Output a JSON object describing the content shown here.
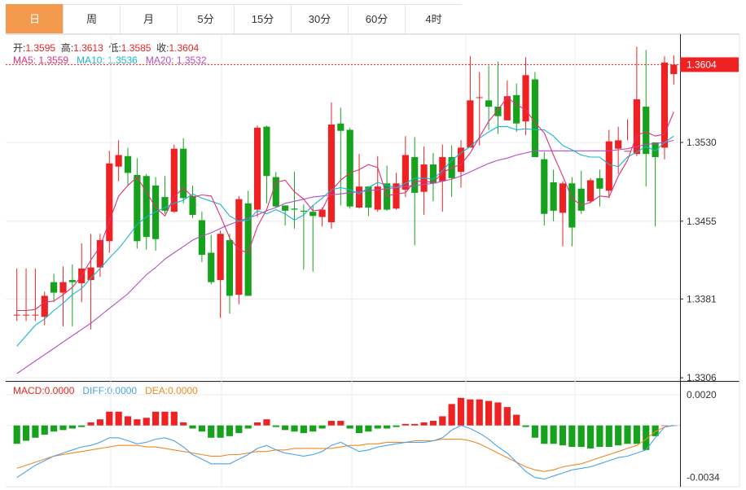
{
  "tabs": [
    {
      "label": "日",
      "active": true
    },
    {
      "label": "周",
      "active": false
    },
    {
      "label": "月",
      "active": false
    },
    {
      "label": "5分",
      "active": false
    },
    {
      "label": "15分",
      "active": false
    },
    {
      "label": "30分",
      "active": false
    },
    {
      "label": "60分",
      "active": false
    },
    {
      "label": "4时",
      "active": false
    }
  ],
  "ohlc": {
    "open_label": "开:",
    "open": "1.3595",
    "high_label": "高:",
    "high": "1.3613",
    "low_label": "低:",
    "low": "1.3585",
    "close_label": "收:",
    "close": "1.3604"
  },
  "ma": {
    "ma5_label": "MA5:",
    "ma5": "1.3559",
    "ma10_label": "MA10:",
    "ma10": "1.3536",
    "ma20_label": "MA20:",
    "ma20": "1.3532"
  },
  "macd": {
    "macd_label": "MACD:",
    "macd": "0.0000",
    "diff_label": "DIFF:",
    "diff": "0.0000",
    "dea_label": "DEA:",
    "dea": "0.0000"
  },
  "last_price_label": "1.3604",
  "colors": {
    "up": "#ee2222",
    "down": "#16a21d",
    "ma5": "#e0307a",
    "ma10": "#17b6d3",
    "ma20": "#b34ec4",
    "diff": "#4aa3e6",
    "dea": "#f08a24",
    "tab_active": "#f39a4e"
  },
  "chart_data": {
    "type": "candlestick",
    "price_axis": {
      "ticks": [
        "1.3604",
        "1.3530",
        "1.3455",
        "1.3381",
        "1.3306"
      ],
      "ylim": [
        1.3303,
        1.3633
      ]
    },
    "macd_axis": {
      "ticks": [
        "0.0020",
        "-0.0034"
      ],
      "ylim": [
        -0.004,
        0.0028
      ]
    },
    "candles": [
      [
        1.3366,
        1.3366,
        1.341,
        1.336
      ],
      [
        1.3366,
        1.3366,
        1.341,
        1.336
      ],
      [
        1.3366,
        1.3366,
        1.341,
        1.336
      ],
      [
        1.3364,
        1.3384,
        1.3388,
        1.3356
      ],
      [
        1.3397,
        1.3387,
        1.3405,
        1.3378
      ],
      [
        1.3387,
        1.3397,
        1.3412,
        1.3355
      ],
      [
        1.3399,
        1.3397,
        1.3414,
        1.3355
      ],
      [
        1.3396,
        1.341,
        1.3434,
        1.3378
      ],
      [
        1.3399,
        1.3411,
        1.3443,
        1.3352
      ],
      [
        1.3411,
        1.3437,
        1.3443,
        1.3402
      ],
      [
        1.3436,
        1.351,
        1.3522,
        1.3425
      ],
      [
        1.3507,
        1.3518,
        1.3532,
        1.3493
      ],
      [
        1.3517,
        1.3501,
        1.3525,
        1.3489
      ],
      [
        1.3499,
        1.3436,
        1.3515,
        1.3429
      ],
      [
        1.3498,
        1.344,
        1.35,
        1.3428
      ],
      [
        1.3489,
        1.3438,
        1.3497,
        1.3427
      ],
      [
        1.3478,
        1.3465,
        1.3498,
        1.3462
      ],
      [
        1.3464,
        1.3524,
        1.3528,
        1.3463
      ],
      [
        1.3524,
        1.3477,
        1.3534,
        1.3472
      ],
      [
        1.3479,
        1.3461,
        1.3489,
        1.3458
      ],
      [
        1.3456,
        1.3423,
        1.3464,
        1.3416
      ],
      [
        1.3425,
        1.3397,
        1.3442,
        1.3395
      ],
      [
        1.3399,
        1.3443,
        1.3446,
        1.3363
      ],
      [
        1.3437,
        1.3384,
        1.3443,
        1.3367
      ],
      [
        1.3385,
        1.3476,
        1.3479,
        1.3376
      ],
      [
        1.3472,
        1.3384,
        1.3484,
        1.3384
      ],
      [
        1.3466,
        1.3544,
        1.3546,
        1.3459
      ],
      [
        1.3545,
        1.3498,
        1.3546,
        1.3472
      ],
      [
        1.3497,
        1.3469,
        1.3502,
        1.3468
      ],
      [
        1.347,
        1.3465,
        1.3468,
        1.3451
      ],
      [
        1.3467,
        1.3466,
        1.3502,
        1.3448
      ],
      [
        1.3465,
        1.3464,
        1.3471,
        1.3409
      ],
      [
        1.3464,
        1.346,
        1.347,
        1.3407
      ],
      [
        1.3459,
        1.3466,
        1.3468,
        1.345
      ],
      [
        1.3454,
        1.3547,
        1.3568,
        1.3448
      ],
      [
        1.3548,
        1.3541,
        1.3563,
        1.347
      ],
      [
        1.3542,
        1.3469,
        1.3544,
        1.3467
      ],
      [
        1.3468,
        1.3488,
        1.3519,
        1.3467
      ],
      [
        1.3488,
        1.3468,
        1.3488,
        1.346
      ],
      [
        1.3466,
        1.3488,
        1.3517,
        1.3464
      ],
      [
        1.3491,
        1.3466,
        1.3508,
        1.3465
      ],
      [
        1.3467,
        1.3491,
        1.3501,
        1.3466
      ],
      [
        1.3485,
        1.3518,
        1.3536,
        1.3478
      ],
      [
        1.3516,
        1.3482,
        1.3535,
        1.3432
      ],
      [
        1.3483,
        1.3509,
        1.3526,
        1.3461
      ],
      [
        1.3509,
        1.3491,
        1.352,
        1.3474
      ],
      [
        1.3493,
        1.3516,
        1.3528,
        1.3464
      ],
      [
        1.3516,
        1.3496,
        1.3527,
        1.3478
      ],
      [
        1.3502,
        1.3525,
        1.3532,
        1.3487
      ],
      [
        1.3525,
        1.357,
        1.3612,
        1.3527
      ],
      [
        1.3573,
        1.3573,
        1.3597,
        1.3527
      ],
      [
        1.357,
        1.3564,
        1.3603,
        1.3542
      ],
      [
        1.3564,
        1.3555,
        1.3607,
        1.3538
      ],
      [
        1.3551,
        1.3574,
        1.3589,
        1.3554
      ],
      [
        1.3575,
        1.3548,
        1.3586,
        1.354
      ],
      [
        1.355,
        1.3594,
        1.3611,
        1.3537
      ],
      [
        1.359,
        1.3516,
        1.3597,
        1.3518
      ],
      [
        1.3514,
        1.3462,
        1.3521,
        1.3451
      ],
      [
        1.3492,
        1.3465,
        1.3504,
        1.3455
      ],
      [
        1.3463,
        1.3491,
        1.3493,
        1.3431
      ],
      [
        1.3491,
        1.3449,
        1.3497,
        1.3431
      ],
      [
        1.3486,
        1.3465,
        1.3503,
        1.3462
      ],
      [
        1.3474,
        1.3494,
        1.3496,
        1.3472
      ],
      [
        1.3496,
        1.3486,
        1.3504,
        1.3469
      ],
      [
        1.3484,
        1.3531,
        1.3542,
        1.3477
      ],
      [
        1.3524,
        1.3532,
        1.3545,
        1.35
      ],
      [
        1.3522,
        1.3522,
        1.3552,
        1.3532
      ],
      [
        1.3519,
        1.3571,
        1.3621,
        1.3517
      ],
      [
        1.3564,
        1.3519,
        1.3618,
        1.3488
      ],
      [
        1.353,
        1.3516,
        1.352,
        1.345
      ],
      [
        1.3525,
        1.3606,
        1.3612,
        1.3514
      ],
      [
        1.3595,
        1.3604,
        1.3613,
        1.3585
      ]
    ],
    "ma5": [
      1.337,
      1.337,
      1.3371,
      1.3378,
      1.3379,
      1.3385,
      1.3392,
      1.3403,
      1.3418,
      1.3431,
      1.3455,
      1.3479,
      1.3489,
      1.3497,
      1.3483,
      1.3468,
      1.346,
      1.3478,
      1.3487,
      1.3478,
      1.348,
      1.3479,
      1.346,
      1.3439,
      1.3428,
      1.3425,
      1.345,
      1.3466,
      1.3492,
      1.3494,
      1.3483,
      1.3476,
      1.3465,
      1.3466,
      1.3484,
      1.3494,
      1.3501,
      1.3504,
      1.3509,
      1.3506,
      1.3479,
      1.3481,
      1.3482,
      1.3493,
      1.3493,
      1.3492,
      1.3501,
      1.3506,
      1.3509,
      1.352,
      1.3535,
      1.355,
      1.3561,
      1.3573,
      1.3566,
      1.3561,
      1.3549,
      1.3539,
      1.3518,
      1.3498,
      1.3477,
      1.347,
      1.3473,
      1.3479,
      1.3478,
      1.3498,
      1.3513,
      1.3537,
      1.354,
      1.3536,
      1.3538,
      1.3559
    ],
    "ma10": [
      1.3336,
      1.3346,
      1.3356,
      1.3362,
      1.337,
      1.3377,
      1.3385,
      1.3391,
      1.3401,
      1.341,
      1.342,
      1.3429,
      1.344,
      1.3452,
      1.3459,
      1.3464,
      1.3468,
      1.3472,
      1.3475,
      1.3481,
      1.3477,
      1.3474,
      1.3471,
      1.346,
      1.3455,
      1.3456,
      1.3465,
      1.3462,
      1.3466,
      1.3462,
      1.3456,
      1.3461,
      1.347,
      1.3477,
      1.3485,
      1.3487,
      1.3485,
      1.3481,
      1.3487,
      1.3492,
      1.3489,
      1.3487,
      1.3491,
      1.3496,
      1.3496,
      1.3495,
      1.3503,
      1.3513,
      1.352,
      1.3526,
      1.3534,
      1.354,
      1.3545,
      1.3545,
      1.3542,
      1.3543,
      1.3542,
      1.3542,
      1.3536,
      1.3527,
      1.3523,
      1.3518,
      1.3516,
      1.3516,
      1.3509,
      1.3507,
      1.3516,
      1.3521,
      1.3526,
      1.3522,
      1.353,
      1.3536
    ],
    "ma20": [
      1.331,
      1.3316,
      1.3322,
      1.3328,
      1.3334,
      1.334,
      1.3346,
      1.3352,
      1.3358,
      1.3365,
      1.3372,
      1.3379,
      1.3386,
      1.3395,
      1.3404,
      1.3411,
      1.3419,
      1.3425,
      1.3431,
      1.3437,
      1.3441,
      1.3444,
      1.3448,
      1.3452,
      1.3455,
      1.3458,
      1.3461,
      1.3465,
      1.3468,
      1.3472,
      1.3474,
      1.3476,
      1.3478,
      1.3479,
      1.348,
      1.3481,
      1.3482,
      1.3483,
      1.3484,
      1.3485,
      1.3486,
      1.3487,
      1.3488,
      1.3489,
      1.349,
      1.3491,
      1.3493,
      1.3495,
      1.3498,
      1.3502,
      1.3506,
      1.351,
      1.3513,
      1.3515,
      1.3518,
      1.352,
      1.3522,
      1.3522,
      1.3522,
      1.3522,
      1.3522,
      1.3522,
      1.3522,
      1.3522,
      1.3522,
      1.3523,
      1.3524,
      1.3526,
      1.3528,
      1.3529,
      1.353,
      1.3532
    ],
    "macd_hist": [
      -0.0012,
      -0.001,
      -0.0008,
      -0.0006,
      -0.0004,
      -0.0003,
      -0.0002,
      -0.0001,
      0.0002,
      0.0004,
      0.0009,
      0.0009,
      0.0006,
      0.0004,
      0.0005,
      0.0009,
      0.0009,
      0.0009,
      0.0002,
      -0.0002,
      -0.0004,
      -0.0008,
      -0.0008,
      -0.0007,
      -0.0005,
      -0.0002,
      0.0002,
      0.0004,
      -0.0001,
      -0.0003,
      -0.0004,
      -0.0005,
      -0.0004,
      -0.0002,
      0.0003,
      0.0003,
      -0.0002,
      -0.0005,
      -0.0004,
      -0.0002,
      -0.0002,
      -0.0001,
      0.0001,
      0.0001,
      0.0002,
      0.0003,
      0.0006,
      0.0014,
      0.0018,
      0.0017,
      0.0017,
      0.0016,
      0.0015,
      0.0012,
      0.0007,
      -0.0001,
      -0.0008,
      -0.0012,
      -0.0012,
      -0.0013,
      -0.0014,
      -0.0014,
      -0.0015,
      -0.0014,
      -0.0014,
      -0.0013,
      -0.0012,
      -0.0012,
      -0.0016,
      -0.0007,
      0.0,
      0.0
    ],
    "diff": [
      -0.0034,
      -0.003,
      -0.0026,
      -0.0023,
      -0.002,
      -0.0018,
      -0.0016,
      -0.0014,
      -0.0013,
      -0.0011,
      -0.0008,
      -0.0008,
      -0.001,
      -0.0012,
      -0.0011,
      -0.0009,
      -0.0008,
      -0.001,
      -0.0014,
      -0.0019,
      -0.0022,
      -0.0025,
      -0.0025,
      -0.0025,
      -0.0022,
      -0.0019,
      -0.0015,
      -0.0013,
      -0.0016,
      -0.0018,
      -0.0019,
      -0.002,
      -0.0019,
      -0.0017,
      -0.0013,
      -0.0011,
      -0.0014,
      -0.0017,
      -0.0016,
      -0.0014,
      -0.0013,
      -0.0012,
      -0.0011,
      -0.0011,
      -0.0011,
      -0.001,
      -0.0008,
      -0.0003,
      0.0,
      -0.0002,
      -0.0005,
      -0.0009,
      -0.0014,
      -0.0018,
      -0.0024,
      -0.003,
      -0.0034,
      -0.0035,
      -0.0033,
      -0.0031,
      -0.0029,
      -0.0028,
      -0.0027,
      -0.0025,
      -0.0023,
      -0.0021,
      -0.002,
      -0.0018,
      -0.0016,
      -0.0008,
      -0.0001,
      0.0
    ],
    "dea": [
      -0.0028,
      -0.0026,
      -0.0024,
      -0.0022,
      -0.002,
      -0.0019,
      -0.0018,
      -0.0017,
      -0.0016,
      -0.0015,
      -0.0014,
      -0.0013,
      -0.0013,
      -0.0013,
      -0.0014,
      -0.0014,
      -0.0015,
      -0.0016,
      -0.0017,
      -0.0018,
      -0.0019,
      -0.002,
      -0.002,
      -0.0019,
      -0.0019,
      -0.0018,
      -0.0017,
      -0.0017,
      -0.0016,
      -0.0016,
      -0.0015,
      -0.0015,
      -0.0015,
      -0.0015,
      -0.0015,
      -0.0014,
      -0.0013,
      -0.0013,
      -0.0012,
      -0.0012,
      -0.0011,
      -0.0011,
      -0.0011,
      -0.001,
      -0.001,
      -0.001,
      -0.0009,
      -0.0009,
      -0.0009,
      -0.001,
      -0.0012,
      -0.0015,
      -0.0018,
      -0.0021,
      -0.0024,
      -0.0027,
      -0.0029,
      -0.003,
      -0.0029,
      -0.0027,
      -0.0026,
      -0.0025,
      -0.0023,
      -0.0021,
      -0.0019,
      -0.0017,
      -0.0015,
      -0.0013,
      -0.0009,
      -0.0004,
      -0.0001,
      0.0
    ]
  }
}
